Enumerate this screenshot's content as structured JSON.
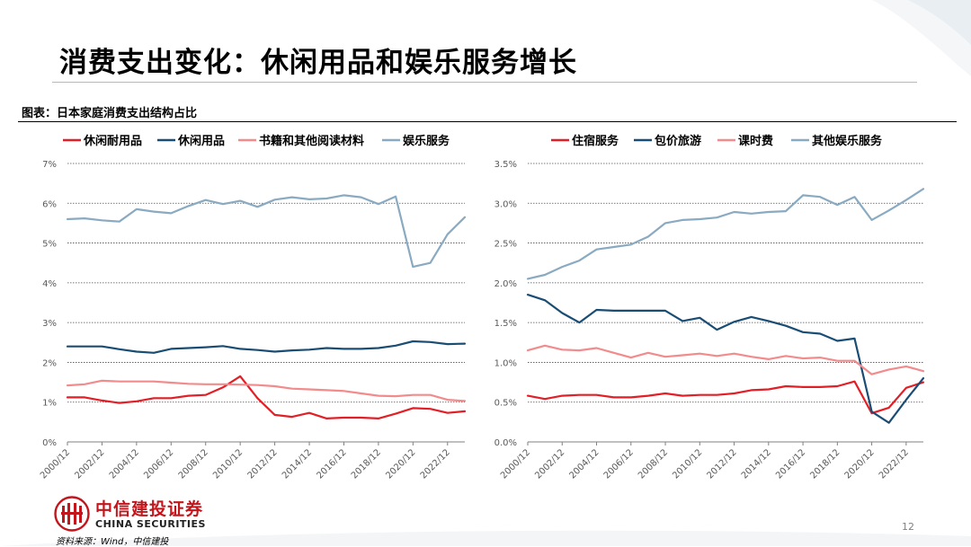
{
  "page": {
    "title": "消费支出变化：休闲用品和娱乐服务增长",
    "caption": "图表：日本家庭消费支出结构占比",
    "source": "资料来源：Wind，中信建投",
    "page_number": "12",
    "brand_cn": "中信建投证券",
    "brand_en": "CHINA SECURITIES"
  },
  "colors": {
    "red": "#e21f26",
    "navy": "#1a4d74",
    "pink": "#f28b8c",
    "steel": "#8aaac1",
    "brand_red": "#c3161c"
  },
  "chart_data": [
    {
      "type": "line",
      "title": "",
      "xlabel": "",
      "ylabel": "",
      "ylim": [
        0,
        7
      ],
      "y_ticks": [
        "0%",
        "1%",
        "2%",
        "3%",
        "4%",
        "5%",
        "6%",
        "7%"
      ],
      "x": [
        "2000/12",
        "2001/12",
        "2002/12",
        "2003/12",
        "2004/12",
        "2005/12",
        "2006/12",
        "2007/12",
        "2008/12",
        "2009/12",
        "2010/12",
        "2011/12",
        "2012/12",
        "2013/12",
        "2014/12",
        "2015/12",
        "2016/12",
        "2017/12",
        "2018/12",
        "2019/12",
        "2020/12",
        "2021/12",
        "2022/12",
        "2023/12"
      ],
      "x_tick_labels": [
        "2000/12",
        "2002/12",
        "2004/12",
        "2006/12",
        "2008/12",
        "2010/12",
        "2012/12",
        "2014/12",
        "2016/12",
        "2018/12",
        "2020/12",
        "2022/12"
      ],
      "legend_position": "top",
      "series": [
        {
          "name": "休闲耐用品",
          "color": "#e21f26",
          "values": [
            1.12,
            1.12,
            1.04,
            0.98,
            1.02,
            1.1,
            1.1,
            1.16,
            1.18,
            1.37,
            1.65,
            1.1,
            0.68,
            0.63,
            0.73,
            0.59,
            0.61,
            0.61,
            0.59,
            0.71,
            0.85,
            0.83,
            0.73,
            0.77
          ]
        },
        {
          "name": "休闲用品",
          "color": "#1a4d74",
          "values": [
            2.4,
            2.4,
            2.4,
            2.33,
            2.27,
            2.24,
            2.34,
            2.36,
            2.38,
            2.41,
            2.34,
            2.31,
            2.27,
            2.3,
            2.32,
            2.36,
            2.34,
            2.34,
            2.36,
            2.42,
            2.53,
            2.51,
            2.46,
            2.47
          ]
        },
        {
          "name": "书籍和其他阅读材料",
          "color": "#f28b8c",
          "values": [
            1.42,
            1.45,
            1.54,
            1.52,
            1.52,
            1.52,
            1.49,
            1.46,
            1.45,
            1.45,
            1.44,
            1.43,
            1.4,
            1.34,
            1.32,
            1.3,
            1.28,
            1.22,
            1.16,
            1.15,
            1.18,
            1.18,
            1.06,
            1.03
          ]
        },
        {
          "name": "娱乐服务",
          "color": "#8aaac1",
          "values": [
            5.6,
            5.62,
            5.57,
            5.54,
            5.85,
            5.79,
            5.75,
            5.93,
            6.08,
            5.98,
            6.06,
            5.91,
            6.09,
            6.15,
            6.1,
            6.12,
            6.2,
            6.15,
            5.98,
            6.17,
            4.4,
            4.5,
            5.22,
            5.65
          ]
        }
      ]
    },
    {
      "type": "line",
      "title": "",
      "xlabel": "",
      "ylabel": "",
      "ylim": [
        0,
        3.5
      ],
      "y_ticks": [
        "0.0%",
        "0.5%",
        "1.0%",
        "1.5%",
        "2.0%",
        "2.5%",
        "3.0%",
        "3.5%"
      ],
      "x": [
        "2000/12",
        "2001/12",
        "2002/12",
        "2003/12",
        "2004/12",
        "2005/12",
        "2006/12",
        "2007/12",
        "2008/12",
        "2009/12",
        "2010/12",
        "2011/12",
        "2012/12",
        "2013/12",
        "2014/12",
        "2015/12",
        "2016/12",
        "2017/12",
        "2018/12",
        "2019/12",
        "2020/12",
        "2021/12",
        "2022/12",
        "2023/12"
      ],
      "x_tick_labels": [
        "2000/12",
        "2002/12",
        "2004/12",
        "2006/12",
        "2008/12",
        "2010/12",
        "2012/12",
        "2014/12",
        "2016/12",
        "2018/12",
        "2020/12",
        "2022/12"
      ],
      "legend_position": "top",
      "series": [
        {
          "name": "住宿服务",
          "color": "#e21f26",
          "values": [
            0.58,
            0.54,
            0.58,
            0.59,
            0.59,
            0.56,
            0.56,
            0.58,
            0.61,
            0.58,
            0.59,
            0.59,
            0.61,
            0.65,
            0.66,
            0.7,
            0.69,
            0.69,
            0.7,
            0.76,
            0.36,
            0.43,
            0.68,
            0.75
          ]
        },
        {
          "name": "包价旅游",
          "color": "#1a4d74",
          "values": [
            1.85,
            1.78,
            1.62,
            1.5,
            1.66,
            1.65,
            1.65,
            1.65,
            1.65,
            1.52,
            1.56,
            1.41,
            1.51,
            1.57,
            1.52,
            1.46,
            1.38,
            1.36,
            1.27,
            1.3,
            0.38,
            0.24,
            0.53,
            0.8
          ]
        },
        {
          "name": "课时费",
          "color": "#f28b8c",
          "values": [
            1.15,
            1.21,
            1.16,
            1.15,
            1.18,
            1.12,
            1.06,
            1.12,
            1.07,
            1.09,
            1.11,
            1.08,
            1.11,
            1.07,
            1.04,
            1.08,
            1.05,
            1.06,
            1.02,
            1.02,
            0.85,
            0.91,
            0.95,
            0.89
          ]
        },
        {
          "name": "其他娱乐服务",
          "color": "#8aaac1",
          "values": [
            2.05,
            2.1,
            2.2,
            2.28,
            2.42,
            2.45,
            2.48,
            2.58,
            2.75,
            2.79,
            2.8,
            2.82,
            2.89,
            2.87,
            2.89,
            2.9,
            3.1,
            3.08,
            2.98,
            3.08,
            2.79,
            2.91,
            3.04,
            3.18
          ]
        }
      ]
    }
  ]
}
